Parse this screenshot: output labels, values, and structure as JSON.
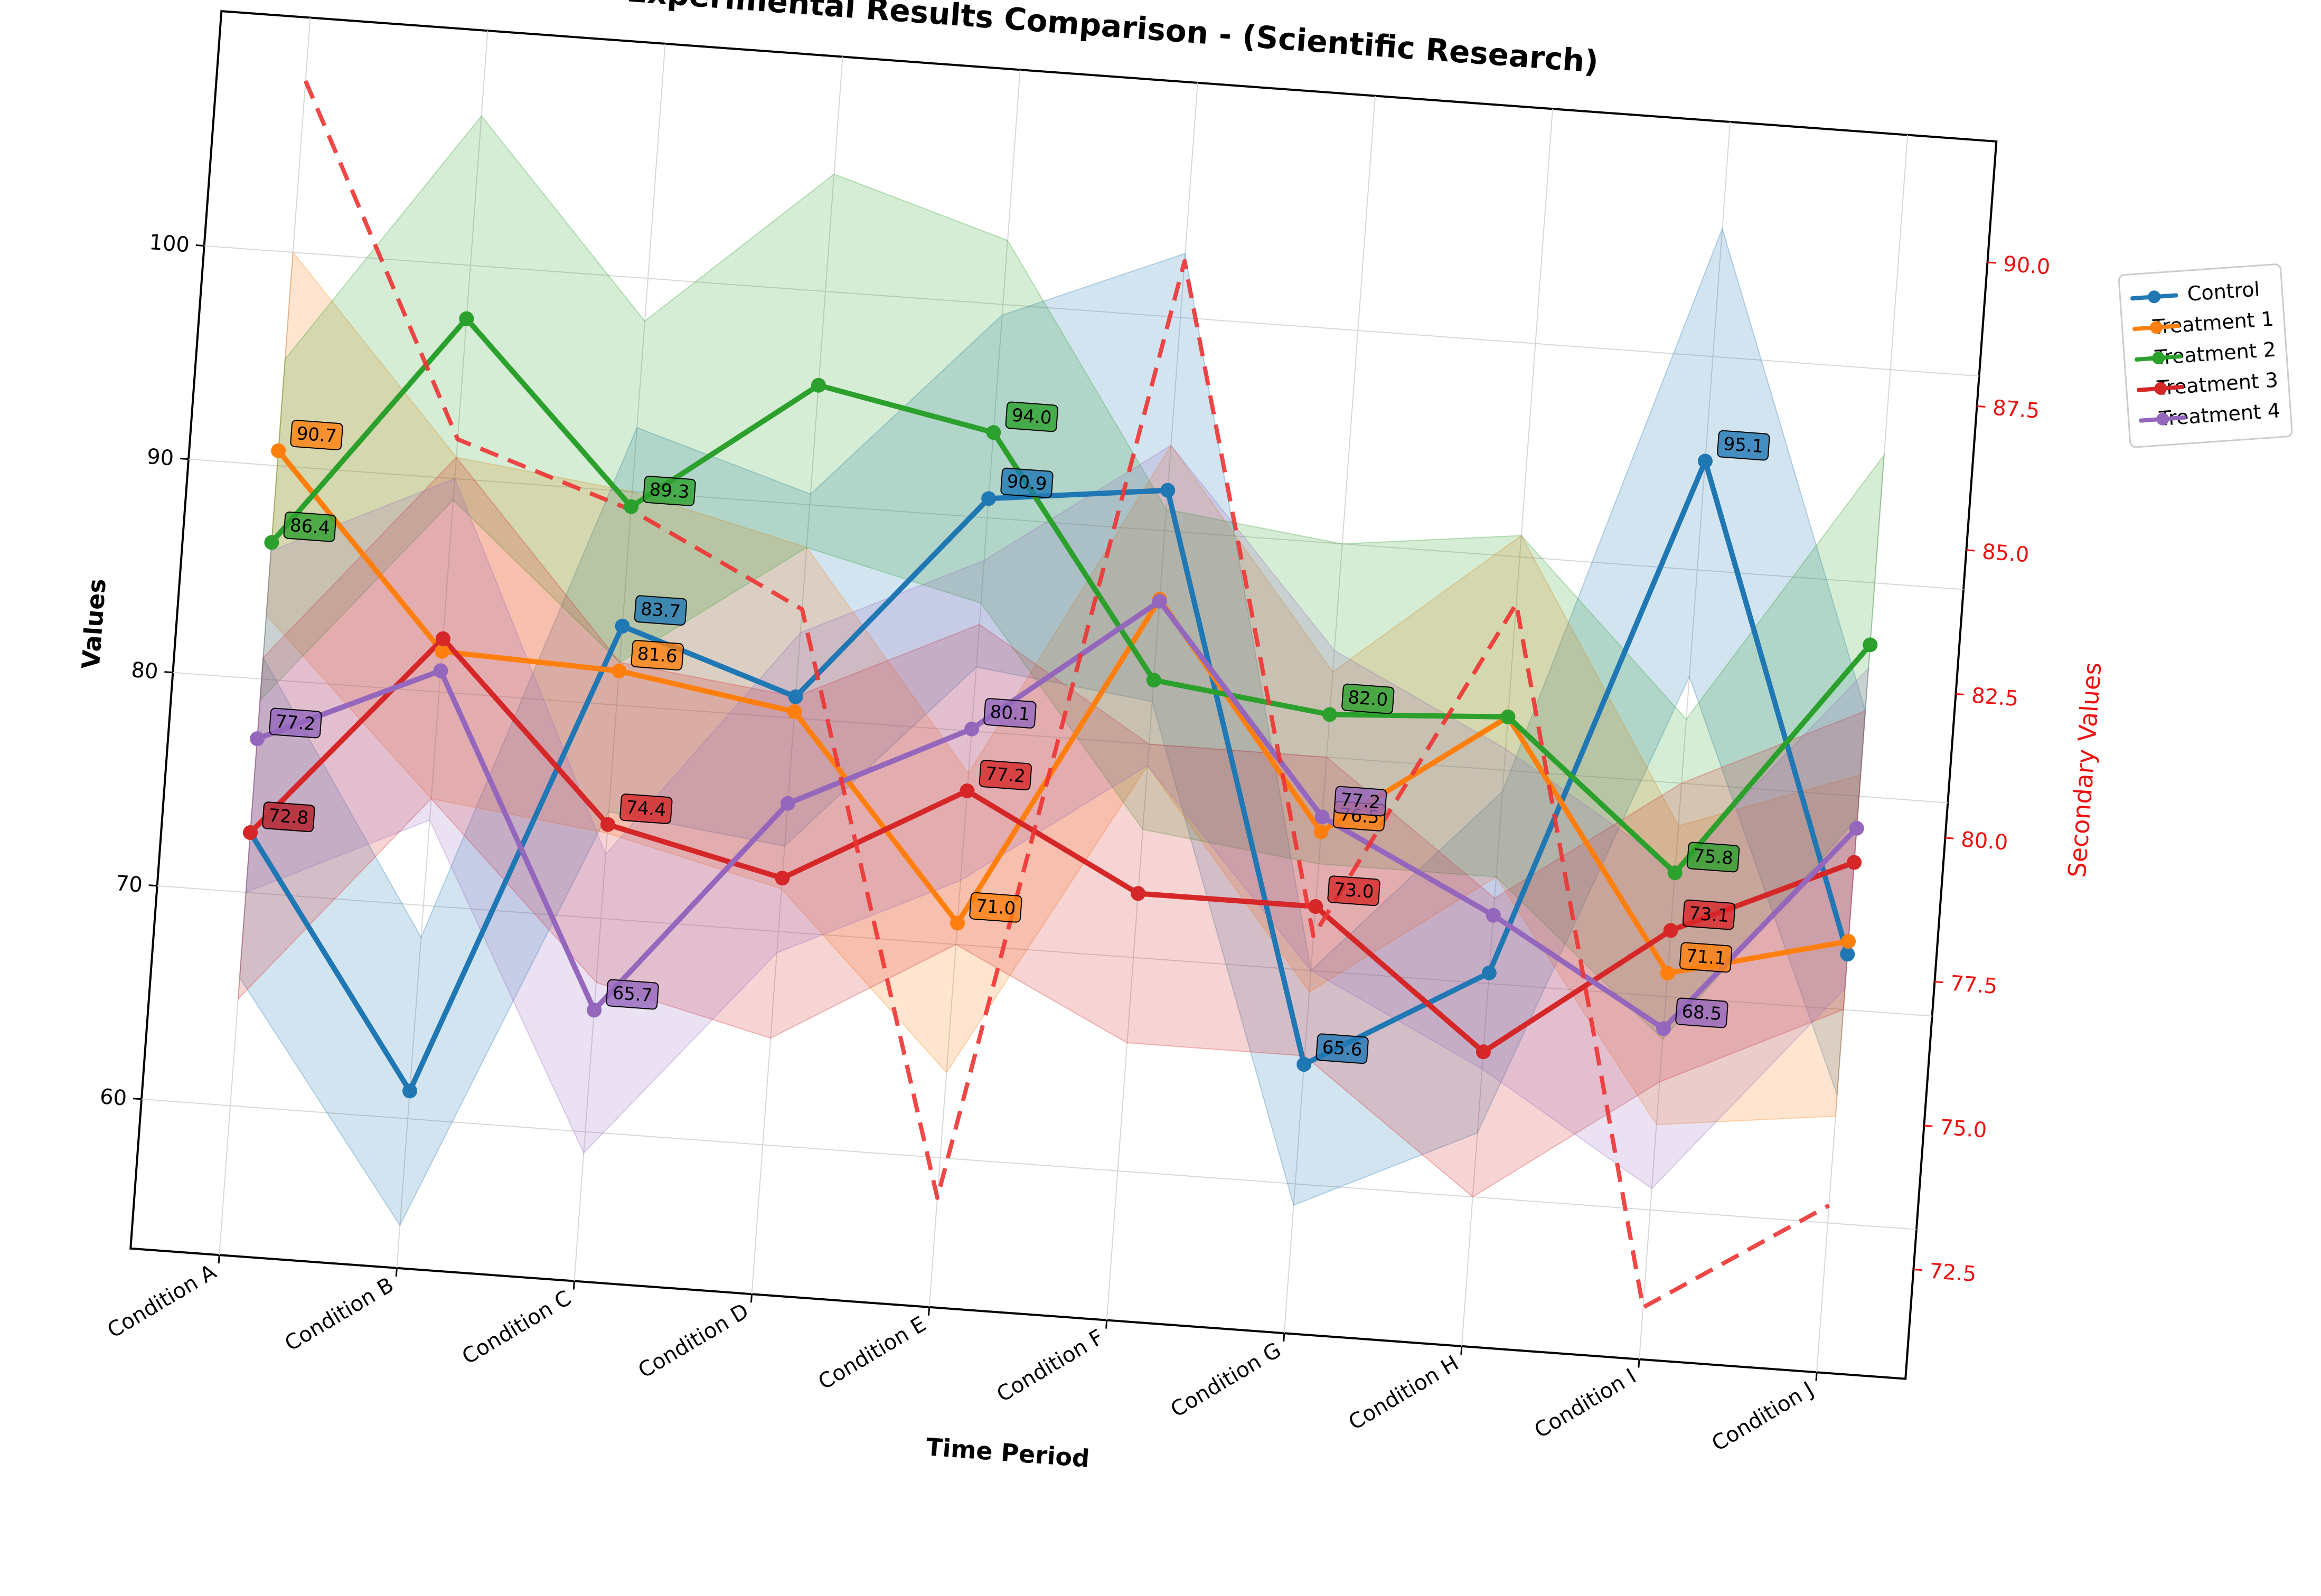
{
  "chart_data": {
    "type": "line",
    "title": "Experimental Results Comparison - (Scientific Research)",
    "xlabel": "Time Period",
    "ylabel": "Values",
    "y2label": "Secondary Values",
    "categories": [
      "Condition A",
      "Condition B",
      "Condition C",
      "Condition D",
      "Condition E",
      "Condition F",
      "Condition G",
      "Condition H",
      "Condition I",
      "Condition J"
    ],
    "ylim": [
      53,
      111
    ],
    "y2lim": [
      70.6,
      92.1
    ],
    "yticks": [
      "60",
      "70",
      "80",
      "90",
      "100"
    ],
    "y2ticks": [
      "72.5",
      "75.0",
      "77.5",
      "80.0",
      "82.5",
      "85.0",
      "87.5",
      "90.0"
    ],
    "grid": true,
    "legend_position": "upper right, outside plot",
    "series": [
      {
        "name": "Control",
        "color": "#1f77b4",
        "values": [
          72.8,
          61.3,
          83.7,
          81.0,
          90.9,
          91.9,
          65.6,
          70.5,
          95.1,
          72.6
        ],
        "upper": [
          81.0,
          68.5,
          93.0,
          90.5,
          99.5,
          103.0,
          70.0,
          79.0,
          106.0,
          84.0
        ],
        "lower": [
          66.0,
          55.0,
          75.0,
          74.0,
          83.0,
          82.0,
          59.0,
          63.0,
          85.0,
          66.0
        ],
        "labels": [
          "72.8",
          "",
          "83.7",
          "",
          "90.9",
          "",
          "65.6",
          "",
          "95.1",
          ""
        ]
      },
      {
        "name": "Treatment 1",
        "color": "#ff7f0e",
        "values": [
          90.7,
          81.9,
          81.6,
          80.3,
          71.0,
          86.8,
          76.5,
          82.5,
          71.1,
          73.2
        ],
        "upper": [
          100.0,
          91.0,
          90.0,
          88.0,
          78.0,
          94.0,
          84.0,
          91.0,
          78.0,
          81.0
        ],
        "lower": [
          83.0,
          75.0,
          74.0,
          72.0,
          64.0,
          79.0,
          69.0,
          75.0,
          64.0,
          65.0
        ],
        "labels": [
          "90.7",
          "",
          "81.6",
          "",
          "71.0",
          "",
          "76.5",
          "",
          "71.1",
          ""
        ]
      },
      {
        "name": "Treatment 2",
        "color": "#2ca02c",
        "values": [
          86.4,
          97.5,
          89.3,
          95.6,
          94.0,
          83.0,
          82.0,
          82.5,
          75.8,
          87.1
        ],
        "upper": [
          95.0,
          107.0,
          98.0,
          105.5,
          103.0,
          91.0,
          90.0,
          91.0,
          83.0,
          96.0
        ],
        "lower": [
          79.0,
          89.0,
          82.0,
          88.0,
          86.0,
          76.0,
          75.0,
          75.0,
          68.0,
          79.0
        ],
        "labels": [
          "86.4",
          "",
          "89.3",
          "",
          "94.0",
          "",
          "82.0",
          "",
          "75.8",
          ""
        ]
      },
      {
        "name": "Treatment 3",
        "color": "#d62728",
        "values": [
          72.8,
          82.5,
          74.4,
          72.5,
          77.2,
          73.0,
          73.0,
          66.8,
          73.1,
          76.9
        ],
        "upper": [
          81.0,
          91.0,
          82.0,
          81.0,
          85.0,
          80.0,
          80.0,
          74.0,
          80.0,
          84.0
        ],
        "lower": [
          65.0,
          75.0,
          67.0,
          65.0,
          70.0,
          66.0,
          66.0,
          60.0,
          66.0,
          70.0
        ],
        "labels": [
          "72.8",
          "",
          "74.4",
          "",
          "77.2",
          "",
          "73.0",
          "",
          "73.1",
          ""
        ]
      },
      {
        "name": "Treatment 4",
        "color": "#9467bd",
        "values": [
          77.2,
          81.0,
          65.7,
          76.0,
          80.1,
          86.7,
          77.2,
          73.2,
          68.5,
          78.5
        ],
        "upper": [
          86.0,
          90.0,
          73.0,
          84.0,
          88.0,
          94.0,
          85.0,
          81.0,
          76.0,
          86.0
        ],
        "lower": [
          70.0,
          74.0,
          59.0,
          69.0,
          73.0,
          79.0,
          70.0,
          66.0,
          61.0,
          71.0
        ],
        "labels": [
          "77.2",
          "",
          "65.7",
          "",
          "80.1",
          "",
          "77.2",
          "",
          "68.5",
          ""
        ]
      },
      {
        "name": "",
        "axis": "secondary",
        "style": "dashed",
        "color": "#ee3333",
        "values": [
          91.0,
          85.0,
          84.0,
          82.5,
          72.5,
          89.0,
          77.5,
          83.5,
          71.5,
          73.5
        ]
      }
    ]
  }
}
